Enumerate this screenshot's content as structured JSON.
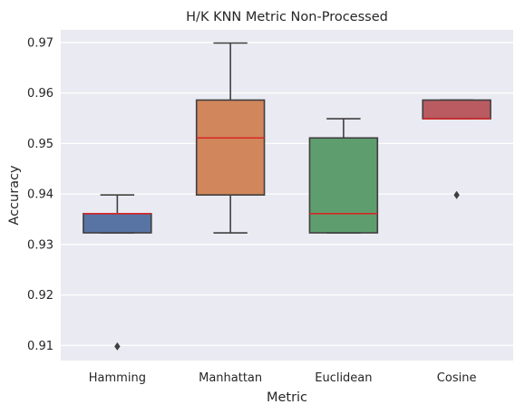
{
  "chart_data": {
    "type": "box",
    "title": "H/K KNN Metric Non-Processed",
    "xlabel": "Metric",
    "ylabel": "Accuracy",
    "ylim": [
      0.907,
      0.9725
    ],
    "yticks": [
      0.91,
      0.92,
      0.93,
      0.94,
      0.95,
      0.96,
      0.97
    ],
    "ytick_labels": [
      "0.91",
      "0.92",
      "0.93",
      "0.94",
      "0.95",
      "0.96",
      "0.97"
    ],
    "grid": true,
    "categories": [
      "Hamming",
      "Manhattan",
      "Euclidean",
      "Cosine"
    ],
    "boxes": [
      {
        "name": "Hamming",
        "color": "#5874a5",
        "whisker_low": 0.9323,
        "q1": 0.9323,
        "median": 0.9361,
        "q3": 0.9361,
        "whisker_high": 0.9398,
        "outliers": [
          0.9098
        ]
      },
      {
        "name": "Manhattan",
        "color": "#d1875b",
        "whisker_low": 0.9323,
        "q1": 0.9398,
        "median": 0.9511,
        "q3": 0.9586,
        "whisker_high": 0.9699,
        "outliers": []
      },
      {
        "name": "Euclidean",
        "color": "#5e9e6e",
        "whisker_low": 0.9323,
        "q1": 0.9323,
        "median": 0.9361,
        "q3": 0.9511,
        "whisker_high": 0.9549,
        "outliers": []
      },
      {
        "name": "Cosine",
        "color": "#b95b61",
        "whisker_low": 0.9549,
        "q1": 0.9549,
        "median": 0.9549,
        "q3": 0.9586,
        "whisker_high": 0.9586,
        "outliers": [
          0.9398
        ]
      }
    ],
    "median_color": "#d62728",
    "line_color": "#3f3f3f",
    "background_color": "#eaeaf2",
    "grid_color": "#ffffff"
  }
}
